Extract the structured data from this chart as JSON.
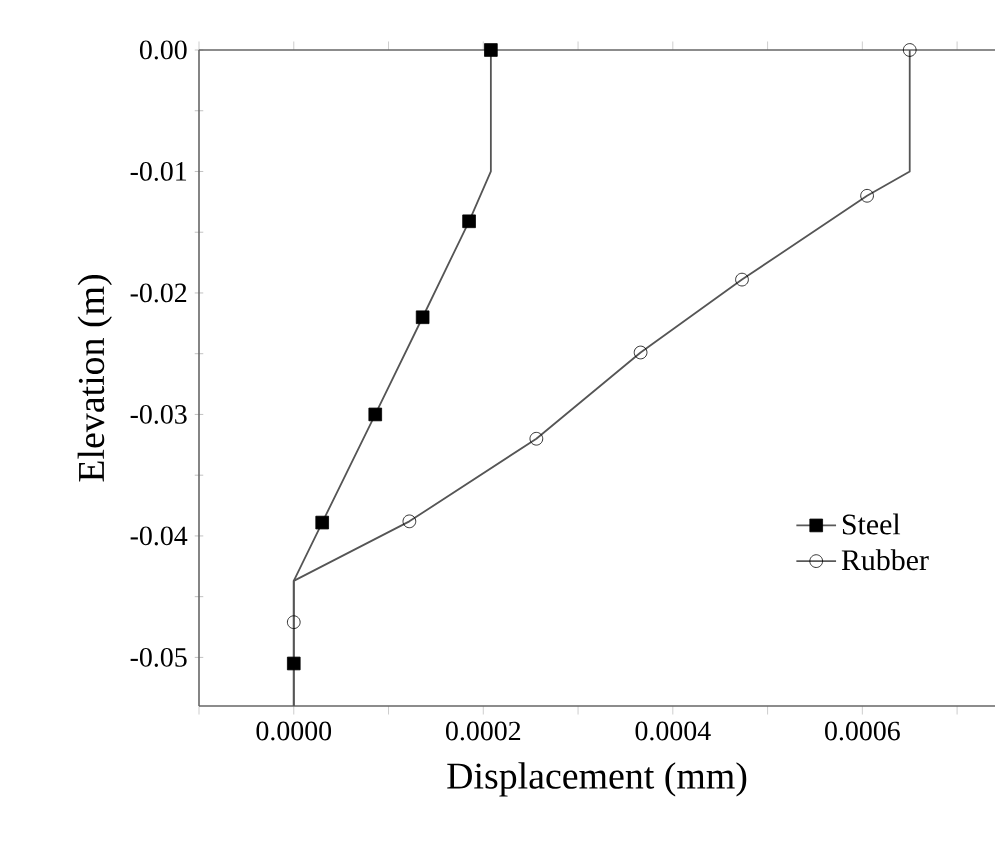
{
  "chart_data": {
    "type": "line",
    "xlabel": "Displacement (mm)",
    "ylabel": "Elevation (m)",
    "xlim": [
      -0.0001,
      0.00074
    ],
    "ylim": [
      -0.054,
      0.0
    ],
    "xticks": [
      {
        "value": -0.0001,
        "label": null
      },
      {
        "value": 0.0,
        "label": "0.0000"
      },
      {
        "value": 0.0001,
        "label": null
      },
      {
        "value": 0.0002,
        "label": "0.0002"
      },
      {
        "value": 0.0003,
        "label": null
      },
      {
        "value": 0.0004,
        "label": "0.0004"
      },
      {
        "value": 0.0005,
        "label": null
      },
      {
        "value": 0.0006,
        "label": "0.0006"
      },
      {
        "value": 0.0007,
        "label": null
      }
    ],
    "yticks": [
      {
        "value": 0.0,
        "label": "0.00"
      },
      {
        "value": -0.005,
        "label": null
      },
      {
        "value": -0.01,
        "label": "-0.01"
      },
      {
        "value": -0.015,
        "label": null
      },
      {
        "value": -0.02,
        "label": "-0.02"
      },
      {
        "value": -0.025,
        "label": null
      },
      {
        "value": -0.03,
        "label": "-0.03"
      },
      {
        "value": -0.035,
        "label": null
      },
      {
        "value": -0.04,
        "label": "-0.04"
      },
      {
        "value": -0.045,
        "label": null
      },
      {
        "value": -0.05,
        "label": "-0.05"
      }
    ],
    "grid": false,
    "legend": "bottom right",
    "series": [
      {
        "marker": "none",
        "color": "#555555",
        "x": [
          0.000208,
          0.000208,
          0.000185,
          0.000136,
          8.6e-05,
          3e-05,
          0.0,
          0.0
        ],
        "values": [
          0.0,
          -0.01,
          -0.0141,
          -0.022,
          -0.03,
          -0.0389,
          -0.0437,
          -0.054
        ]
      },
      {
        "type": "scatter",
        "name": "Steel",
        "marker": "square",
        "color": "#000000",
        "x": [
          0.000208,
          0.000185,
          0.000136,
          8.6e-05,
          3e-05,
          0.0
        ],
        "values": [
          0.0,
          -0.0141,
          -0.022,
          -0.03,
          -0.0389,
          -0.0505
        ]
      },
      {
        "marker": "none",
        "color": "#555555",
        "x": [
          0.00065,
          0.00065,
          0.000605,
          0.000473,
          0.000366,
          0.000256,
          0.000122,
          0.0,
          0.0
        ],
        "values": [
          0.0,
          -0.01,
          -0.012,
          -0.0189,
          -0.0249,
          -0.032,
          -0.0388,
          -0.0437,
          -0.054
        ]
      },
      {
        "type": "scatter",
        "name": "Rubber",
        "marker": "circle",
        "color": "#000000",
        "x": [
          0.00065,
          0.000605,
          0.000473,
          0.000366,
          0.000256,
          0.000122,
          0.0
        ],
        "values": [
          0.0,
          -0.012,
          -0.0189,
          -0.0249,
          -0.032,
          -0.0388,
          -0.0471
        ]
      }
    ]
  }
}
